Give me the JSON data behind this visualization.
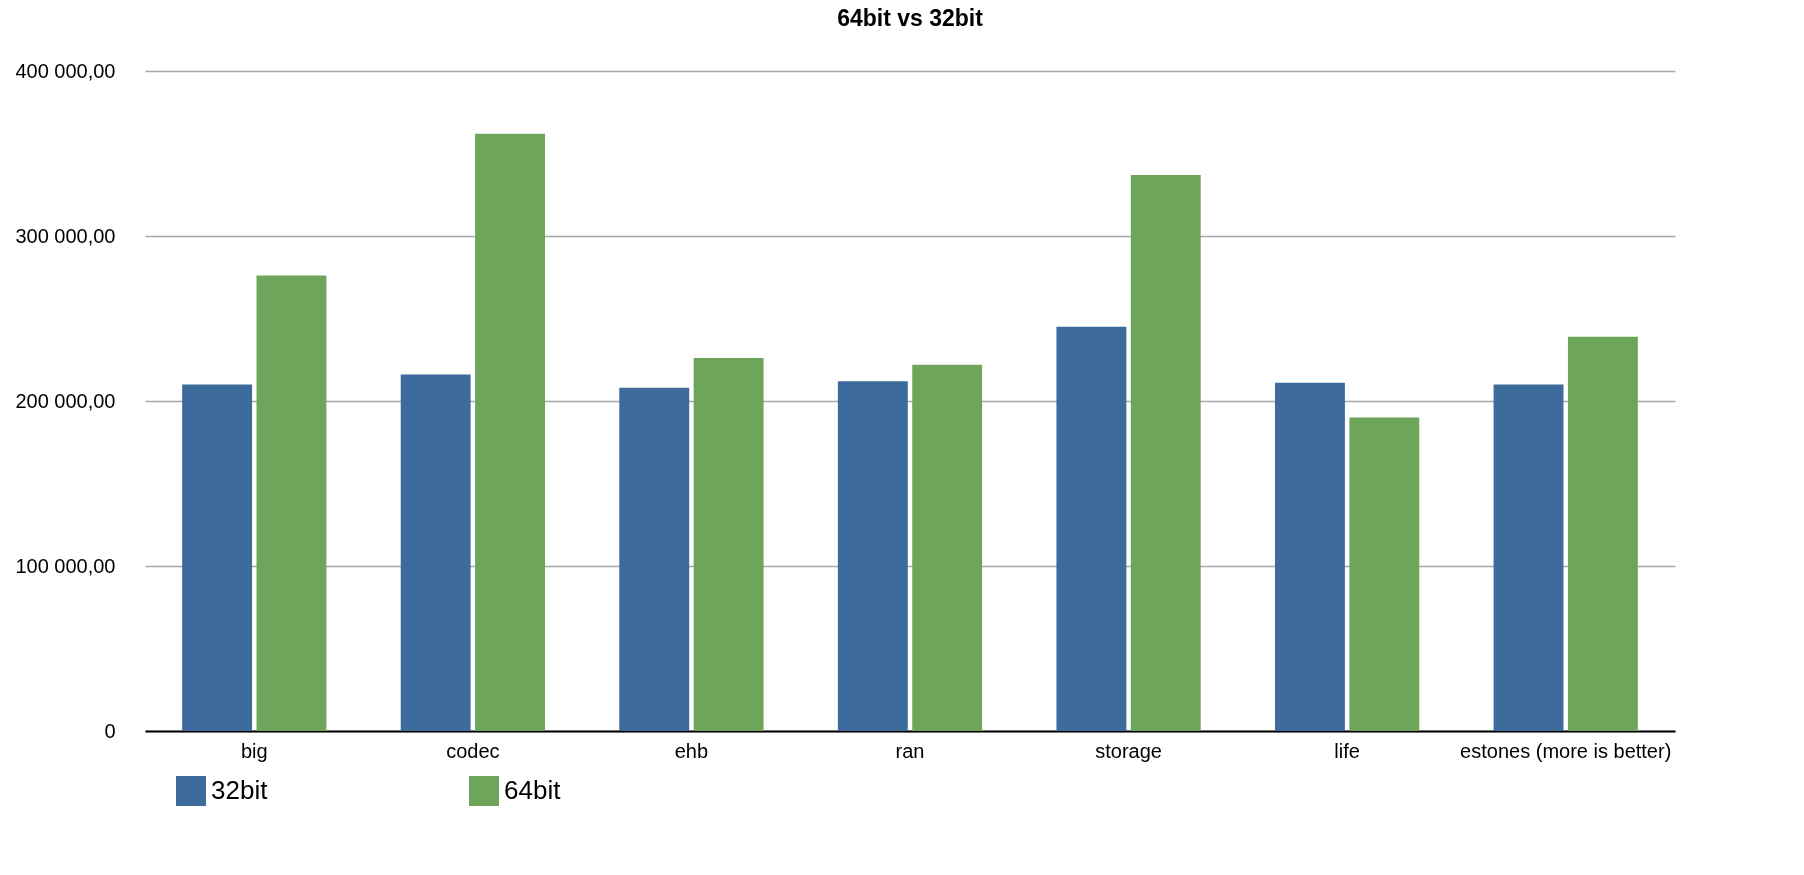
{
  "chart_data": {
    "type": "bar",
    "title": "64bit vs 32bit",
    "categories": [
      "big",
      "codec",
      "ehb",
      "ran",
      "storage",
      "life",
      "estones (more is better)"
    ],
    "series": [
      {
        "name": "32bit",
        "color": "#3d6b9c",
        "values": [
          210000,
          216000,
          208000,
          212000,
          245000,
          211000,
          210000
        ]
      },
      {
        "name": "64bit",
        "color": "#6da55a",
        "values": [
          276000,
          362000,
          226000,
          222000,
          337000,
          190000,
          239000
        ]
      }
    ],
    "ylim": [
      0,
      400000
    ],
    "yticks": [
      0,
      {
        "value": 100000,
        "label": "100 000,00"
      },
      {
        "value": 200000,
        "label": "200 000,00"
      },
      {
        "value": 300000,
        "label": "300 000,00"
      },
      {
        "value": 400000,
        "label": "400 000,00"
      }
    ],
    "grid": "y",
    "legend": "bottom left"
  }
}
